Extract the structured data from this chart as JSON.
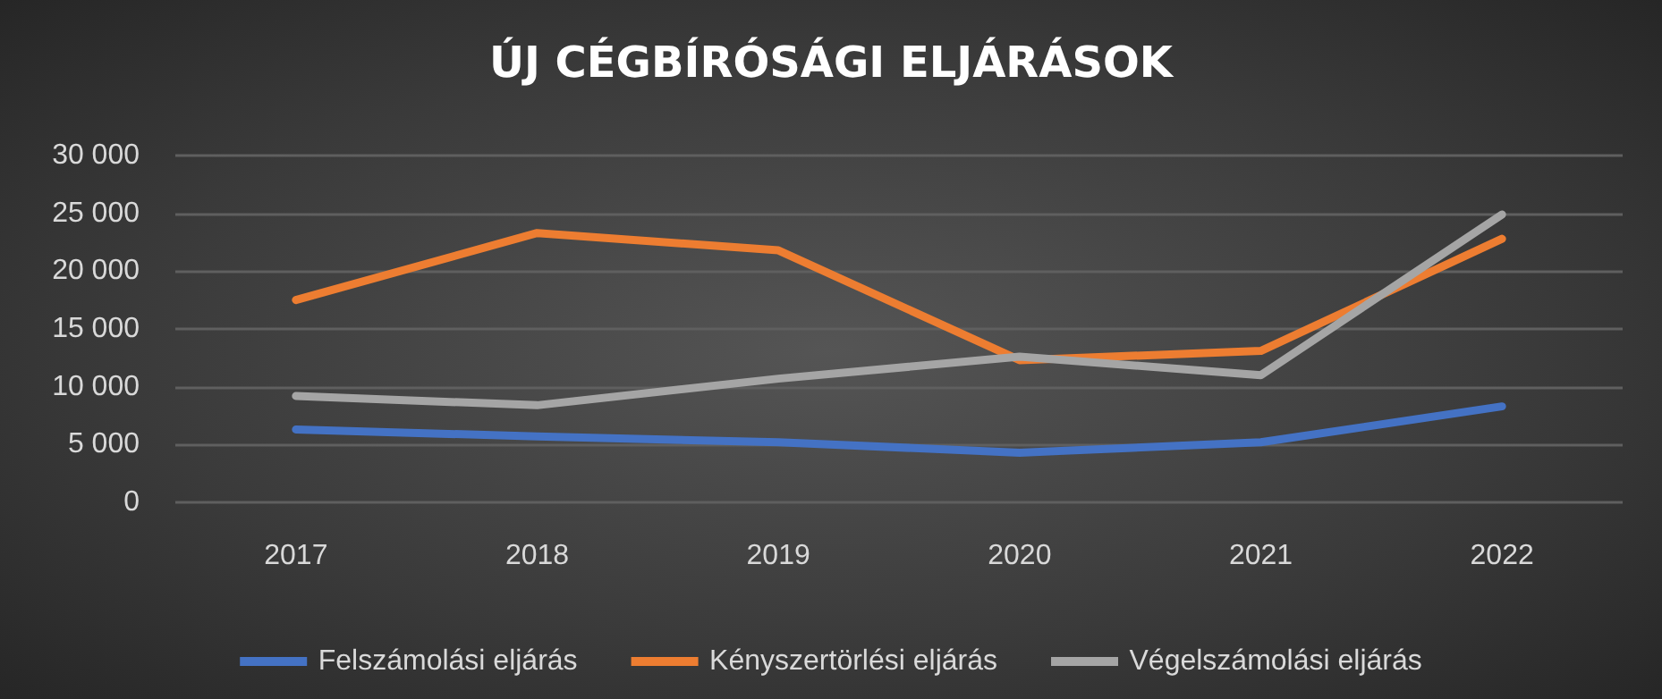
{
  "chart_data": {
    "type": "line",
    "title": "ÚJ CÉGBÍRÓSÁGI ELJÁRÁSOK",
    "categories": [
      "2017",
      "2018",
      "2019",
      "2020",
      "2021",
      "2022"
    ],
    "series": [
      {
        "name": "Felszámolási eljárás",
        "color": "#4472c4",
        "values": [
          6300,
          5700,
          5200,
          4300,
          5200,
          8300
        ]
      },
      {
        "name": "Kényszertörlési eljárás",
        "color": "#ed7d31",
        "values": [
          17500,
          23300,
          21800,
          12300,
          13100,
          22800
        ]
      },
      {
        "name": "Végelszámolási eljárás",
        "color": "#a5a5a5",
        "values": [
          9200,
          8400,
          10700,
          12600,
          11000,
          24900
        ]
      }
    ],
    "ylim": [
      0,
      30000
    ],
    "yticks": [
      0,
      5000,
      10000,
      15000,
      20000,
      25000,
      30000
    ],
    "grid": "y",
    "legend": "bottom",
    "marker": "none",
    "line_style": "solid"
  }
}
